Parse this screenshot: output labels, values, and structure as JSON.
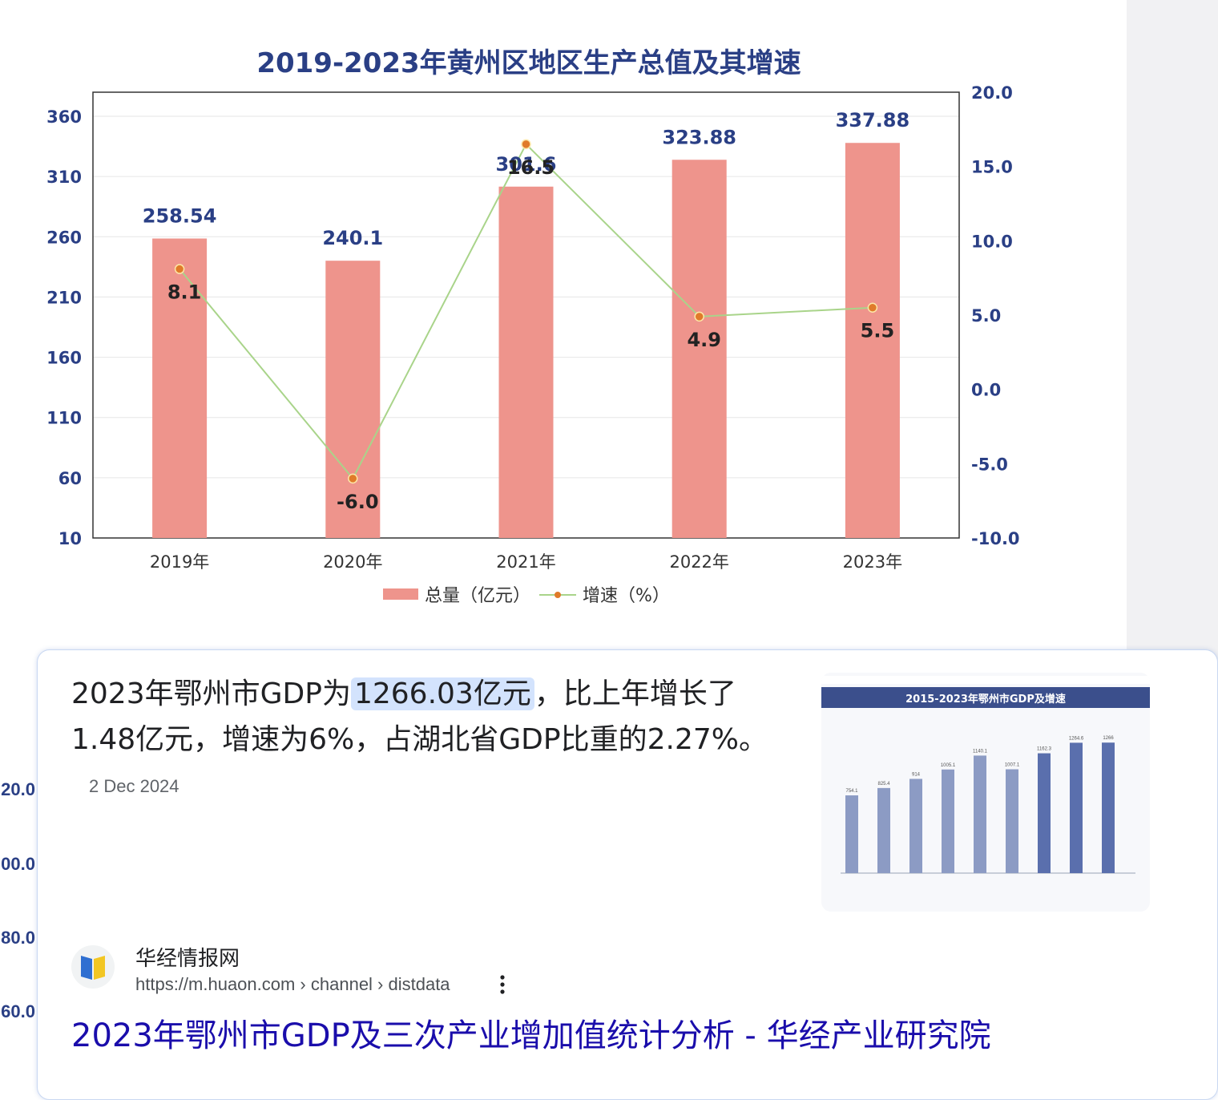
{
  "chart_data": {
    "type": "bar",
    "title": "2019-2023年黄州区地区生产总值及其增速",
    "categories": [
      "2019年",
      "2020年",
      "2021年",
      "2022年",
      "2023年"
    ],
    "series": [
      {
        "name": "总量（亿元）",
        "type": "bar",
        "axis": "left",
        "color": "#ee948c",
        "values": [
          258.54,
          240.1,
          301.6,
          323.88,
          337.88
        ]
      },
      {
        "name": "增速（%）",
        "type": "line",
        "axis": "right",
        "color": "#a9d48a",
        "marker_color": "#e07b2a",
        "values": [
          8.1,
          -6.0,
          16.5,
          4.9,
          5.5
        ]
      }
    ],
    "bar_labels": [
      "258.54",
      "240.1",
      "301.6",
      "323.88",
      "337.88"
    ],
    "line_labels": [
      "8.1",
      "-6.0",
      "16.5",
      "4.9",
      "5.5"
    ],
    "y_left": {
      "ylim": [
        10,
        360
      ],
      "ticks": [
        "360",
        "310",
        "260",
        "210",
        "160",
        "110",
        "60",
        "10"
      ]
    },
    "y_right": {
      "ylim": [
        -10,
        20
      ],
      "ticks": [
        "20.0",
        "15.0",
        "10.0",
        "5.0",
        "0.0",
        "-5.0",
        "-10.0"
      ]
    },
    "legend_position": "bottom",
    "grid": true
  },
  "left_partial_ticks": [
    "20.0",
    "00.0",
    "80.0",
    "60.0"
  ],
  "search_result": {
    "snippet_part1": "2023年鄂州市GDP为",
    "snippet_highlight": "1266.03亿元",
    "snippet_part2": "，比上年增长了1.48亿元，增速为6%，占湖北省GDP比重的2.27%。",
    "date": "2 Dec 2024",
    "site_name": "华经情报网",
    "site_url": "https://m.huaon.com › channel › distdata",
    "title": "2023年鄂州市GDP及三次产业增加值统计分析 - 华经产业研究院",
    "thumbnail": {
      "title": "2015-2023年鄂州市GDP及增速",
      "values": [
        754.1,
        825.4,
        914,
        1005.1,
        1140.1,
        1007.1,
        1162.3,
        1264.6,
        1266
      ],
      "value_labels": [
        "754.1",
        "825.4",
        "914",
        "1005.1",
        "1140.1",
        "1007.1",
        "1162.3",
        "1264.6",
        "1266"
      ]
    }
  },
  "colors": {
    "accent_title": "#2a3f85",
    "link": "#1a0dab",
    "highlight": "#d3e3fd"
  }
}
